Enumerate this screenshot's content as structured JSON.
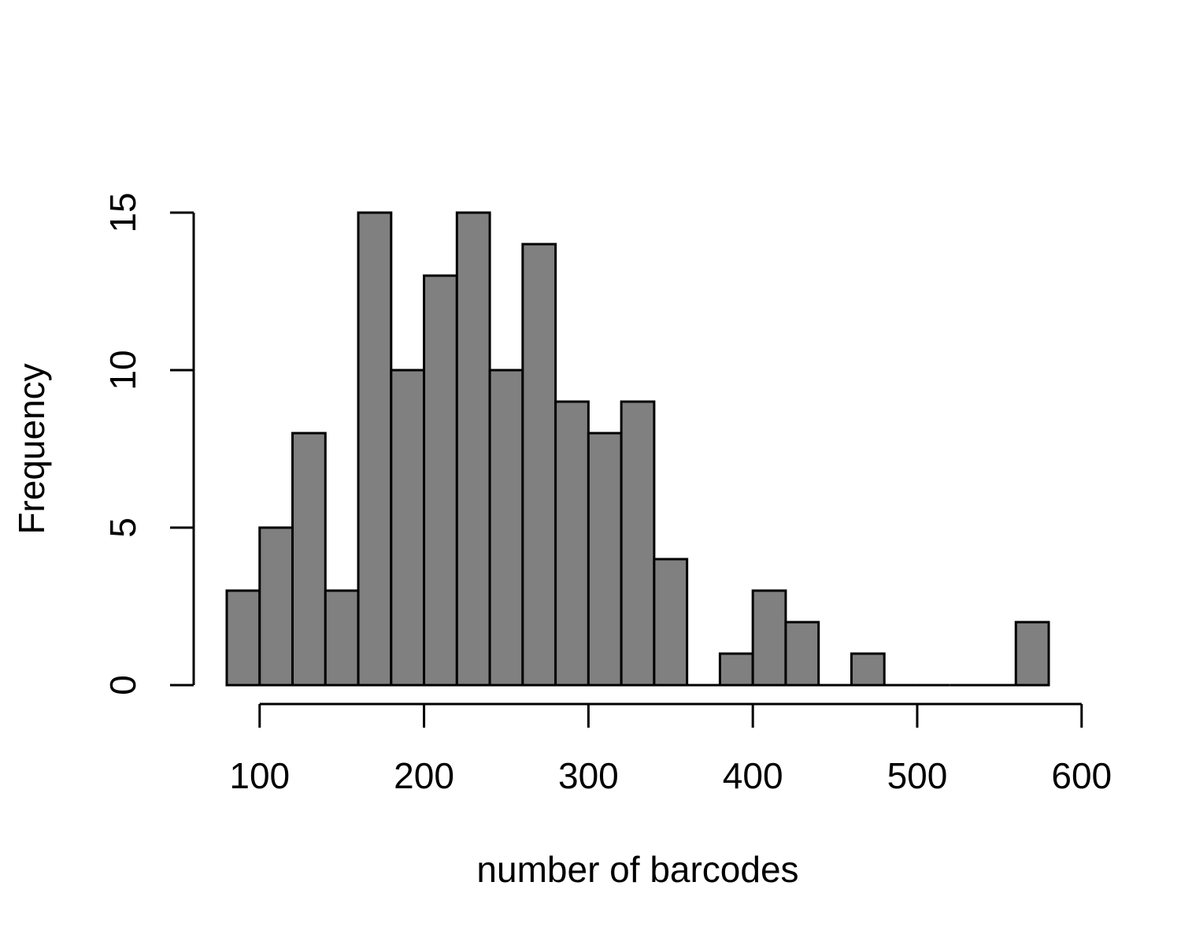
{
  "chart_data": {
    "type": "bar",
    "title": "",
    "xlabel": "number of barcodes",
    "ylabel": "Frequency",
    "bin_width": 20,
    "bins": [
      {
        "x0": 80,
        "x1": 100,
        "count": 3
      },
      {
        "x0": 100,
        "x1": 120,
        "count": 5
      },
      {
        "x0": 120,
        "x1": 140,
        "count": 8
      },
      {
        "x0": 140,
        "x1": 160,
        "count": 3
      },
      {
        "x0": 160,
        "x1": 180,
        "count": 15
      },
      {
        "x0": 180,
        "x1": 200,
        "count": 10
      },
      {
        "x0": 200,
        "x1": 220,
        "count": 13
      },
      {
        "x0": 220,
        "x1": 240,
        "count": 15
      },
      {
        "x0": 240,
        "x1": 260,
        "count": 10
      },
      {
        "x0": 260,
        "x1": 280,
        "count": 14
      },
      {
        "x0": 280,
        "x1": 300,
        "count": 9
      },
      {
        "x0": 300,
        "x1": 320,
        "count": 8
      },
      {
        "x0": 320,
        "x1": 340,
        "count": 9
      },
      {
        "x0": 340,
        "x1": 360,
        "count": 4
      },
      {
        "x0": 360,
        "x1": 380,
        "count": 0
      },
      {
        "x0": 380,
        "x1": 400,
        "count": 1
      },
      {
        "x0": 400,
        "x1": 420,
        "count": 3
      },
      {
        "x0": 420,
        "x1": 440,
        "count": 2
      },
      {
        "x0": 440,
        "x1": 460,
        "count": 0
      },
      {
        "x0": 460,
        "x1": 480,
        "count": 1
      },
      {
        "x0": 480,
        "x1": 500,
        "count": 0
      },
      {
        "x0": 500,
        "x1": 520,
        "count": 0
      },
      {
        "x0": 520,
        "x1": 540,
        "count": 0
      },
      {
        "x0": 540,
        "x1": 560,
        "count": 0
      },
      {
        "x0": 560,
        "x1": 580,
        "count": 2
      }
    ],
    "xlim": [
      80,
      580
    ],
    "ylim": [
      0,
      15
    ],
    "x_ticks": [
      100,
      200,
      300,
      400,
      500,
      600
    ],
    "x_tick_labels": [
      "100",
      "200",
      "300",
      "400",
      "500",
      "600"
    ],
    "y_ticks": [
      0,
      5,
      10,
      15
    ],
    "y_tick_labels": [
      "0",
      "5",
      "10",
      "15"
    ],
    "bar_fill": "#808080",
    "bar_stroke": "#000000",
    "grid": false,
    "legend": "none"
  }
}
